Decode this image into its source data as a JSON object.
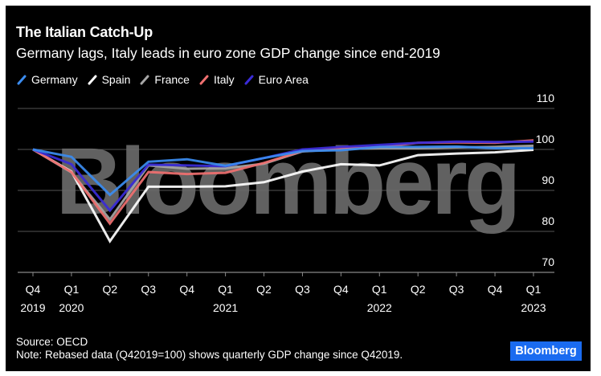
{
  "header": {
    "title": "The Italian Catch-Up",
    "subtitle": "Germany lags, Italy leads in euro zone GDP change since end-2019"
  },
  "watermark": "Bloomberg",
  "footer": {
    "source": "Source: OECD",
    "note": "Note: Rebased data (Q42019=100) shows quarterly GDP change since Q42019.",
    "brand": "Bloomberg"
  },
  "colors": {
    "background": "#000000",
    "gridline": "#555555",
    "axis": "#888888",
    "watermark": "#6b6b6b",
    "brand": "#1a6bf0"
  },
  "chart_data": {
    "type": "line",
    "title": "The Italian Catch-Up",
    "subtitle": "Germany lags, Italy leads in euro zone GDP change since end-2019",
    "xlabel": "",
    "ylabel": "",
    "ylim": [
      70,
      110
    ],
    "yticks": [
      110,
      100,
      90,
      80,
      70
    ],
    "y_axis_position": "right",
    "grid": true,
    "legend_position": "top-left",
    "x": [
      "Q4 2019",
      "Q1 2020",
      "Q2 2020",
      "Q3 2020",
      "Q4 2020",
      "Q1 2021",
      "Q2 2021",
      "Q3 2021",
      "Q4 2021",
      "Q1 2022",
      "Q2 2022",
      "Q3 2022",
      "Q4 2022",
      "Q1 2023"
    ],
    "xtick_labels": [
      {
        "q": "Q4",
        "year": "2019"
      },
      {
        "q": "Q1",
        "year": "2020"
      },
      {
        "q": "Q2",
        "year": ""
      },
      {
        "q": "Q3",
        "year": ""
      },
      {
        "q": "Q4",
        "year": ""
      },
      {
        "q": "Q1",
        "year": "2021"
      },
      {
        "q": "Q2",
        "year": ""
      },
      {
        "q": "Q3",
        "year": ""
      },
      {
        "q": "Q4",
        "year": ""
      },
      {
        "q": "Q1",
        "year": "2022"
      },
      {
        "q": "Q2",
        "year": ""
      },
      {
        "q": "Q3",
        "year": ""
      },
      {
        "q": "Q4",
        "year": ""
      },
      {
        "q": "Q1",
        "year": "2023"
      }
    ],
    "series": [
      {
        "name": "Spain",
        "color": "#ffffff",
        "values": [
          100,
          94.6,
          77.6,
          90.9,
          90.9,
          91.0,
          92.0,
          94.6,
          96.4,
          96.1,
          98.6,
          99.0,
          99.3,
          99.9
        ]
      },
      {
        "name": "France",
        "color": "#a6a6a6",
        "values": [
          100,
          94.4,
          82.9,
          96.1,
          95.3,
          95.4,
          96.5,
          99.5,
          100.1,
          100.3,
          100.3,
          100.5,
          100.6,
          100.9
        ]
      },
      {
        "name": "Italy",
        "color": "#f07070",
        "values": [
          100,
          94.5,
          81.9,
          94.5,
          94.0,
          94.3,
          96.7,
          99.6,
          100.4,
          100.6,
          101.6,
          101.7,
          101.6,
          102.2
        ]
      },
      {
        "name": "Euro Area",
        "color": "#3a2bd8",
        "values": [
          100,
          96.4,
          85.1,
          96.3,
          96.1,
          95.9,
          97.9,
          100.0,
          100.6,
          101.1,
          101.6,
          101.9,
          101.8,
          101.9
        ]
      },
      {
        "name": "Germany",
        "color": "#3b8cf0",
        "values": [
          100,
          98.2,
          88.9,
          97.0,
          97.6,
          96.0,
          97.9,
          99.6,
          99.8,
          100.6,
          100.6,
          100.7,
          100.3,
          100.3
        ]
      }
    ],
    "legend_order": [
      "Germany",
      "Spain",
      "France",
      "Italy",
      "Euro Area"
    ]
  }
}
